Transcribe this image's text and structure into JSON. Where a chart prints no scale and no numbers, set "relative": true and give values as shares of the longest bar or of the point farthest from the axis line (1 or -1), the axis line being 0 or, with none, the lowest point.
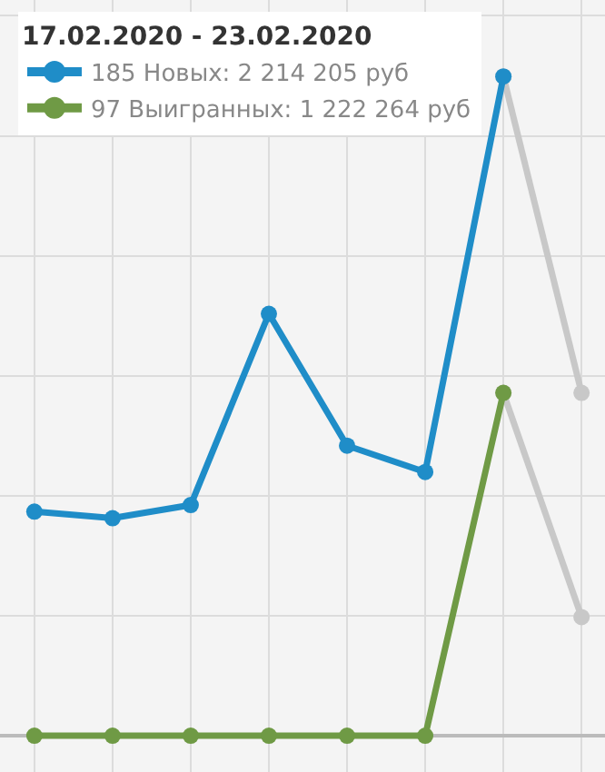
{
  "chart_data": {
    "type": "line",
    "relative": true,
    "categories": [
      null,
      null,
      null,
      null,
      null,
      null,
      null,
      null
    ],
    "legend_title": "17.02.2020 - 23.02.2020",
    "legend": "top left",
    "grid": true,
    "marker": "circle",
    "line_style": "solid",
    "tick_labels": false,
    "series": [
      {
        "color": "#c8c8c8",
        "values": [
          null,
          null,
          null,
          null,
          null,
          null,
          1,
          0.52
        ]
      },
      {
        "color": "#c8c8c8",
        "values": [
          null,
          null,
          null,
          null,
          null,
          null,
          0.52,
          0.18
        ]
      },
      {
        "name": "185 Новых: 2 214 205 руб",
        "color": "#1f8dc8",
        "values": [
          0.34,
          0.33,
          0.35,
          0.64,
          0.44,
          0.4,
          1,
          null
        ]
      },
      {
        "name": "97 Выигранных: 1 222 264 руб",
        "color": "#6f9a45",
        "values": [
          0,
          0,
          0,
          0,
          0,
          0,
          0.52,
          null
        ]
      }
    ]
  }
}
